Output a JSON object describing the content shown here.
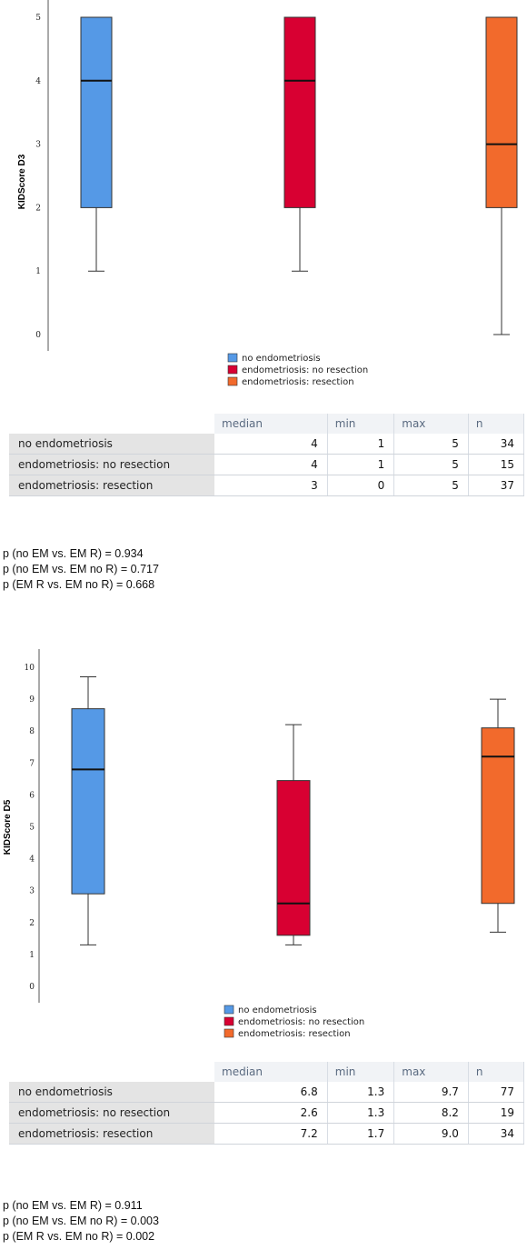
{
  "colors": {
    "no_endometriosis": "#5599e6",
    "no_resection": "#d80032",
    "resection": "#f26a2c"
  },
  "chart_data": [
    {
      "type": "box",
      "ylabel": "KIDScore D3",
      "ylim": [
        0,
        5
      ],
      "yticks": [
        "0",
        "1",
        "2",
        "3",
        "4",
        "5"
      ],
      "legend_position": "bottom",
      "series": [
        {
          "name": "no endometriosis",
          "whisker_low": 1,
          "q1": 2,
          "median": 4,
          "q3": 5,
          "whisker_high": 5
        },
        {
          "name": "endometriosis: no resection",
          "whisker_low": 1,
          "q1": 2,
          "median": 4,
          "q3": 5,
          "whisker_high": 5
        },
        {
          "name": "endometriosis: resection",
          "whisker_low": 0,
          "q1": 2,
          "median": 3,
          "q3": 5,
          "whisker_high": 5
        }
      ],
      "table": {
        "columns": [
          "median",
          "min",
          "max",
          "n"
        ],
        "rows": [
          {
            "label": "no endometriosis",
            "values": [
              "4",
              "1",
              "5",
              "34"
            ]
          },
          {
            "label": "endometriosis: no resection",
            "values": [
              "4",
              "1",
              "5",
              "15"
            ]
          },
          {
            "label": "endometriosis: resection",
            "values": [
              "3",
              "0",
              "5",
              "37"
            ]
          }
        ]
      },
      "pvalues": [
        "p (no EM vs. EM R) = 0.934",
        "p (no EM vs. EM no R) = 0.717",
        "p (EM R vs. EM no R) = 0.668"
      ]
    },
    {
      "type": "box",
      "ylabel": "KIDScore D5",
      "ylim": [
        0,
        10
      ],
      "yticks": [
        "0",
        "1",
        "2",
        "3",
        "4",
        "5",
        "6",
        "7",
        "8",
        "9",
        "10"
      ],
      "legend_position": "bottom",
      "series": [
        {
          "name": "no endometriosis",
          "whisker_low": 1.3,
          "q1": 2.9,
          "median": 6.8,
          "q3": 8.7,
          "whisker_high": 9.7
        },
        {
          "name": "endometriosis: no resection",
          "whisker_low": 1.3,
          "q1": 1.6,
          "median": 2.6,
          "q3": 6.45,
          "whisker_high": 8.2
        },
        {
          "name": "endometriosis: resection",
          "whisker_low": 1.7,
          "q1": 2.6,
          "median": 7.2,
          "q3": 8.1,
          "whisker_high": 9.0
        }
      ],
      "table": {
        "columns": [
          "median",
          "min",
          "max",
          "n"
        ],
        "rows": [
          {
            "label": "no endometriosis",
            "values": [
              "6.8",
              "1.3",
              "9.7",
              "77"
            ]
          },
          {
            "label": "endometriosis: no resection",
            "values": [
              "2.6",
              "1.3",
              "8.2",
              "19"
            ]
          },
          {
            "label": "endometriosis: resection",
            "values": [
              "7.2",
              "1.7",
              "9.0",
              "34"
            ]
          }
        ]
      },
      "pvalues": [
        "p (no EM vs. EM R) = 0.911",
        "p (no EM vs. EM no R) = 0.003",
        "p (EM R vs. EM no R) = 0.002"
      ]
    }
  ]
}
